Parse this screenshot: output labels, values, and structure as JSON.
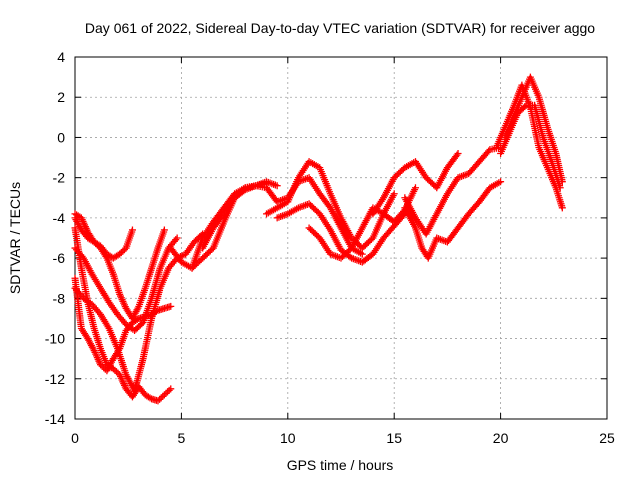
{
  "chart_data": {
    "type": "scatter",
    "title": "Day 061 of 2022, Sidereal Day-to-day VTEC variation (SDTVAR) for receiver aggo",
    "xlabel": "GPS time / hours",
    "ylabel": "SDTVAR / TECUs",
    "xlim": [
      0,
      25
    ],
    "ylim": [
      -14,
      4
    ],
    "xticks": [
      0,
      5,
      10,
      15,
      20,
      25
    ],
    "yticks": [
      -14,
      -12,
      -10,
      -8,
      -6,
      -4,
      -2,
      0,
      2,
      4
    ],
    "xtick_labels": [
      "0",
      "5",
      "10",
      "15",
      "20",
      "25"
    ],
    "ytick_labels": [
      "-14",
      "-12",
      "-10",
      "-8",
      "-6",
      "-4",
      "-2",
      "0",
      "2",
      "4"
    ],
    "grid": true,
    "marker": "+",
    "color": "#ff0000",
    "series": [
      {
        "x": [
          0.0,
          0.3,
          0.6,
          0.9,
          1.2,
          1.5,
          1.8,
          2.1,
          2.4,
          2.7,
          3.0,
          3.3,
          3.6,
          3.9,
          4.2,
          4.5
        ],
        "y": [
          -4.5,
          -6.5,
          -8.2,
          -9.5,
          -10.5,
          -11.3,
          -11.5,
          -11.8,
          -12.5,
          -12.9,
          -12.4,
          -12.8,
          -13.0,
          -13.1,
          -12.8,
          -12.5
        ]
      },
      {
        "x": [
          0.0,
          0.3,
          0.6,
          0.9,
          1.2,
          1.5,
          1.8,
          2.1,
          2.4,
          2.7,
          3.0,
          3.3,
          3.6,
          3.9,
          4.2,
          4.5
        ],
        "y": [
          -7.0,
          -9.5,
          -10.0,
          -10.6,
          -11.3,
          -11.6,
          -11.0,
          -10.5,
          -9.6,
          -9.2,
          -9.0,
          -8.9,
          -8.8,
          -8.6,
          -8.5,
          -8.4
        ]
      },
      {
        "x": [
          0.0,
          0.4,
          0.8,
          1.2,
          1.6,
          2.0,
          2.4,
          2.8,
          3.2,
          3.6,
          4.0,
          4.4,
          4.8,
          5.2,
          5.6,
          6.0
        ],
        "y": [
          -7.5,
          -8.0,
          -8.3,
          -8.8,
          -9.5,
          -10.5,
          -11.8,
          -12.6,
          -11.0,
          -9.0,
          -7.5,
          -6.5,
          -6.0,
          -5.8,
          -5.2,
          -4.8
        ]
      },
      {
        "x": [
          0.0,
          0.4,
          0.8,
          1.2,
          1.6,
          2.0,
          2.4,
          2.8,
          3.2,
          3.6,
          4.0,
          4.4,
          4.8
        ],
        "y": [
          -5.5,
          -6.0,
          -6.8,
          -7.5,
          -8.2,
          -8.8,
          -9.3,
          -9.6,
          -9.2,
          -8.0,
          -6.5,
          -5.5,
          -5.0
        ]
      },
      {
        "x": [
          0.0,
          0.3,
          0.6,
          0.9,
          1.2,
          1.5,
          1.8,
          2.1,
          2.4,
          2.7,
          3.0,
          3.3,
          3.6,
          3.9,
          4.2
        ],
        "y": [
          -4.0,
          -4.6,
          -5.0,
          -5.2,
          -5.5,
          -6.0,
          -6.8,
          -7.8,
          -8.5,
          -9.0,
          -8.4,
          -7.5,
          -6.5,
          -5.5,
          -4.6
        ]
      },
      {
        "x": [
          0.0,
          0.3,
          0.6,
          0.9,
          1.2,
          1.5,
          1.8,
          2.1,
          2.4,
          2.7
        ],
        "y": [
          -3.8,
          -4.0,
          -4.7,
          -5.2,
          -5.4,
          -5.8,
          -6.0,
          -5.8,
          -5.5,
          -4.6
        ]
      },
      {
        "x": [
          4.5,
          5.0,
          5.5,
          6.0,
          6.5,
          7.0,
          7.5,
          8.0,
          8.5,
          9.0
        ],
        "y": [
          -5.5,
          -6.2,
          -6.5,
          -5.0,
          -4.2,
          -3.5,
          -2.8,
          -2.5,
          -2.4,
          -2.3
        ]
      },
      {
        "x": [
          5.5,
          6.0,
          6.5,
          7.0,
          7.5,
          8.0,
          8.5,
          9.0,
          9.5
        ],
        "y": [
          -6.5,
          -6.0,
          -5.5,
          -4.2,
          -3.0,
          -2.5,
          -2.4,
          -2.2,
          -2.4
        ]
      },
      {
        "x": [
          6.0,
          6.5,
          7.0,
          7.5,
          8.0,
          8.5,
          9.0,
          9.5,
          10.0,
          10.5,
          11.0,
          11.5,
          12.0,
          12.5,
          13.0,
          13.5
        ],
        "y": [
          -5.5,
          -4.5,
          -3.8,
          -3.0,
          -2.6,
          -2.4,
          -2.5,
          -3.2,
          -3.0,
          -2.2,
          -2.0,
          -2.8,
          -3.5,
          -4.5,
          -5.5,
          -5.8
        ]
      },
      {
        "x": [
          9.0,
          9.5,
          10.0,
          10.5,
          11.0,
          11.5,
          12.0,
          12.5,
          13.0,
          13.5,
          14.0,
          14.5,
          15.0
        ],
        "y": [
          -3.8,
          -3.5,
          -3.2,
          -2.0,
          -1.2,
          -1.5,
          -2.8,
          -4.0,
          -5.0,
          -5.5,
          -5.0,
          -3.8,
          -2.8
        ]
      },
      {
        "x": [
          9.5,
          10.0,
          10.5,
          11.0,
          11.5,
          12.0,
          12.5,
          13.0,
          13.5,
          14.0,
          14.5,
          15.0,
          15.5
        ],
        "y": [
          -4.0,
          -3.8,
          -3.5,
          -3.3,
          -3.8,
          -4.6,
          -5.6,
          -6.0,
          -6.2,
          -5.8,
          -5.0,
          -4.4,
          -3.8
        ]
      },
      {
        "x": [
          11.0,
          11.5,
          12.0,
          12.5,
          13.0,
          13.5,
          14.0,
          14.5,
          15.0,
          15.5,
          16.0
        ],
        "y": [
          -4.5,
          -5.0,
          -5.8,
          -6.0,
          -5.5,
          -4.5,
          -3.5,
          -3.8,
          -4.2,
          -3.6,
          -2.5
        ]
      },
      {
        "x": [
          14.0,
          14.5,
          15.0,
          15.5,
          16.0,
          16.5,
          17.0,
          17.5,
          18.0
        ],
        "y": [
          -3.8,
          -3.0,
          -2.0,
          -1.5,
          -1.2,
          -2.0,
          -2.5,
          -1.5,
          -0.8
        ]
      },
      {
        "x": [
          15.5,
          16.0,
          16.5,
          17.0,
          17.5,
          18.0,
          18.5,
          19.0,
          19.5,
          20.0
        ],
        "y": [
          -3.0,
          -4.0,
          -4.8,
          -3.8,
          -2.8,
          -2.0,
          -1.8,
          -1.2,
          -0.6,
          -0.5
        ]
      },
      {
        "x": [
          15.5,
          16.0,
          16.3,
          16.6,
          17.0,
          17.5,
          18.0,
          18.5,
          19.0,
          19.5,
          20.0
        ],
        "y": [
          -3.5,
          -4.5,
          -5.5,
          -6.0,
          -5.0,
          -5.2,
          -4.5,
          -3.8,
          -3.2,
          -2.5,
          -2.2
        ]
      },
      {
        "x": [
          19.8,
          20.2,
          20.6,
          21.0,
          21.4,
          21.8,
          22.2,
          22.6,
          22.9
        ],
        "y": [
          -0.5,
          0.5,
          1.5,
          2.6,
          1.5,
          -0.5,
          -1.5,
          -2.5,
          -3.5
        ]
      },
      {
        "x": [
          20.0,
          20.4,
          20.8,
          21.2,
          21.6,
          22.0,
          22.4,
          22.8
        ],
        "y": [
          -0.8,
          0.2,
          1.2,
          1.6,
          1.6,
          0.0,
          -1.2,
          -2.5
        ]
      },
      {
        "x": [
          20.2,
          20.6,
          21.0,
          21.4,
          21.8,
          22.2,
          22.6,
          22.9
        ],
        "y": [
          0.0,
          1.0,
          2.0,
          3.0,
          2.0,
          0.5,
          -0.8,
          -2.2
        ]
      }
    ]
  }
}
